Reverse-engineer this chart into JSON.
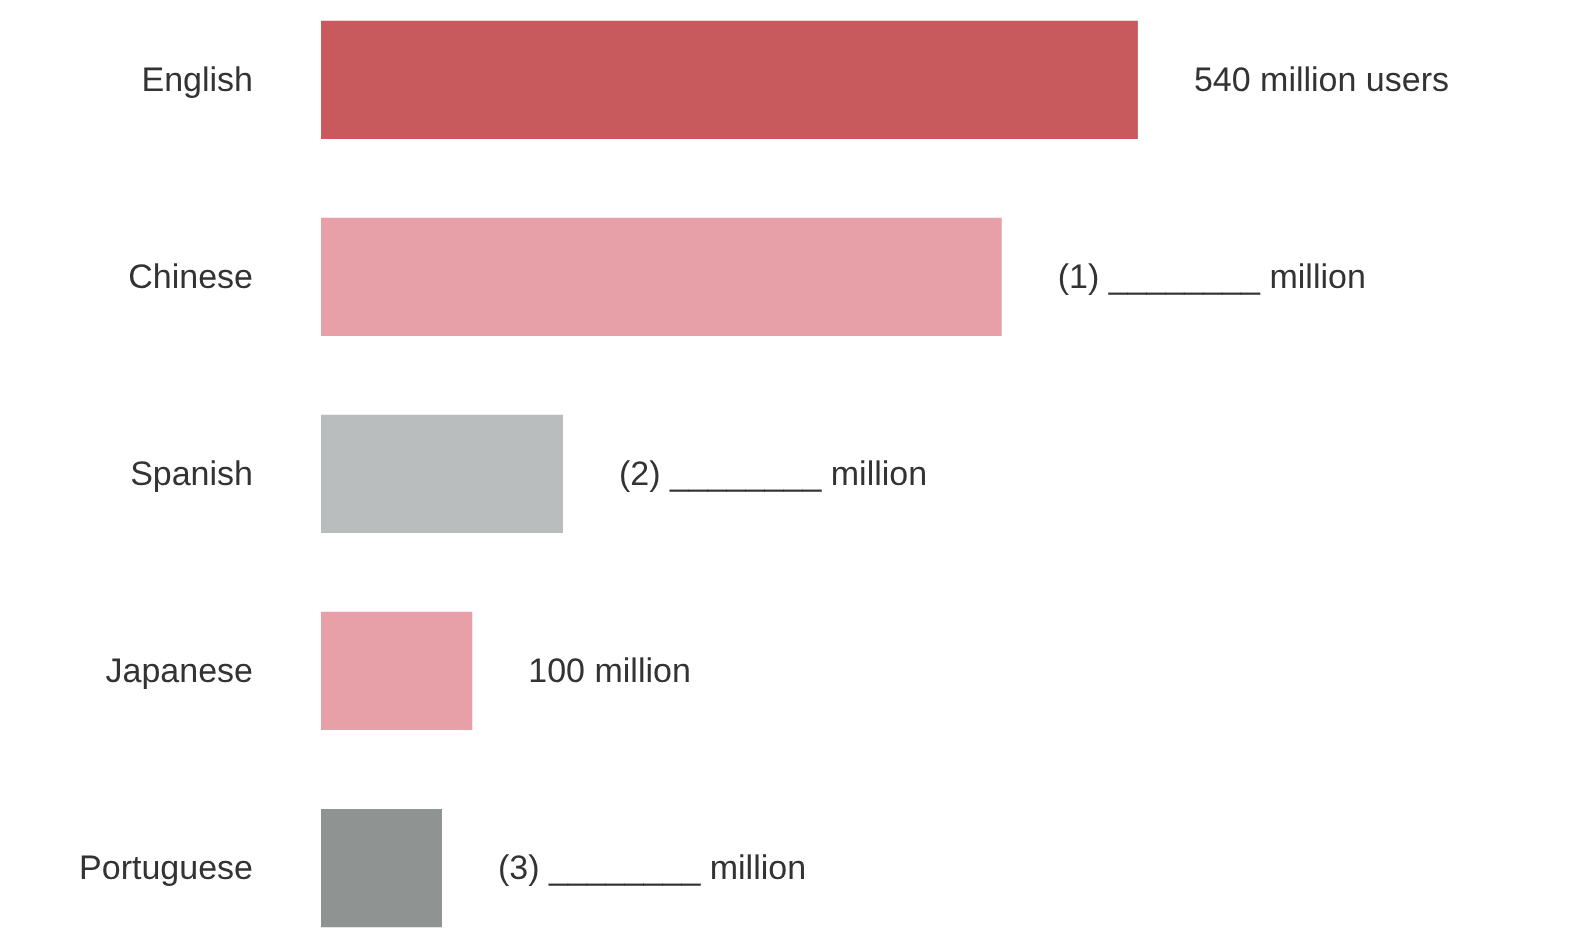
{
  "chart_data": {
    "type": "bar",
    "orientation": "horizontal",
    "categories": [
      "English",
      "Chinese",
      "Spanish",
      "Japanese",
      "Portuguese"
    ],
    "values": [
      540,
      450,
      160,
      100,
      80
    ],
    "colors": [
      "#c85a5e",
      "#e8a0a8",
      "#b9bdbe",
      "#e8a0a8",
      "#8f9492"
    ],
    "value_labels": [
      "540 million users",
      null,
      null,
      "100 million",
      null
    ],
    "annotations": [
      "(1) ________ million",
      "(2) ________ million",
      "(3) ________ million"
    ]
  }
}
